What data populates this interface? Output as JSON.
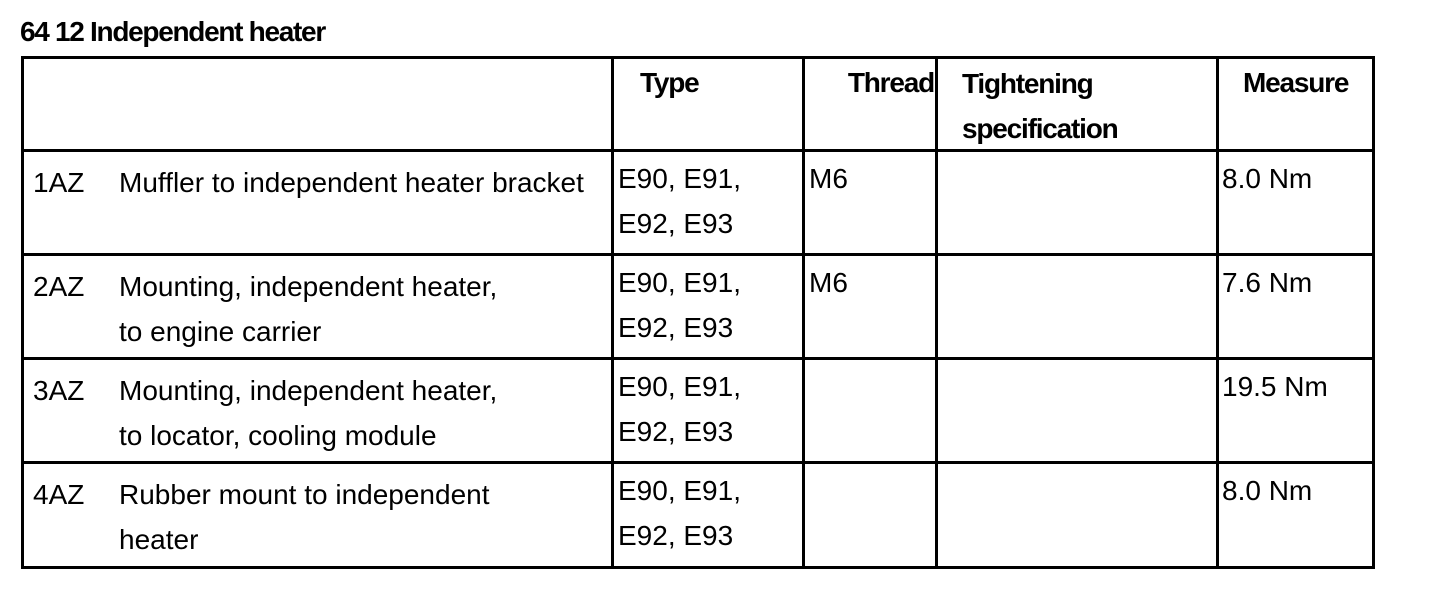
{
  "title": "64 12 Independent heater",
  "table": {
    "headers": {
      "item": "",
      "type": "Type",
      "thread": "Thread",
      "tightening": "Tightening specification",
      "measure": "Measure"
    },
    "rows": [
      {
        "code": "1AZ",
        "description": "Muffler to independent heater bracket",
        "type": "E90, E91,\nE92, E93",
        "thread": "M6",
        "tightening": "",
        "measure": "8.0 Nm"
      },
      {
        "code": "2AZ",
        "description": "Mounting, independent heater,\nto engine carrier",
        "type": "E90, E91,\nE92, E93",
        "thread": "M6",
        "tightening": "",
        "measure": "7.6 Nm"
      },
      {
        "code": "3AZ",
        "description": "Mounting, independent heater,\nto locator, cooling module",
        "type": "E90, E91,\nE92, E93",
        "thread": "",
        "tightening": "",
        "measure": "19.5 Nm"
      },
      {
        "code": "4AZ",
        "description": "Rubber mount to independent\nheater",
        "type": "E90, E91,\nE92, E93",
        "thread": "",
        "tightening": "",
        "measure": "8.0 Nm"
      }
    ]
  }
}
